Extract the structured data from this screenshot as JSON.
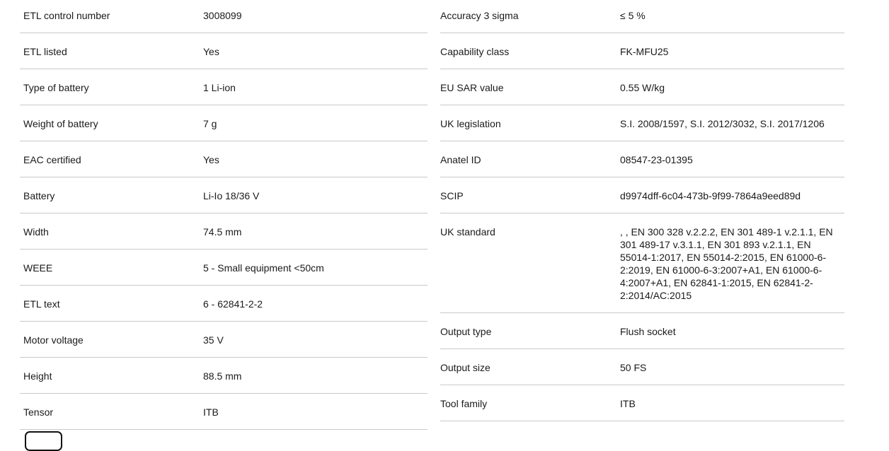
{
  "page": {
    "background_color": "#ffffff",
    "divider_color": "#c9c9c9",
    "text_color": "#1a1a1a"
  },
  "spec_table": {
    "left_column": [
      {
        "label": "ETL control number",
        "value": "3008099"
      },
      {
        "label": "ETL listed",
        "value": "Yes"
      },
      {
        "label": "Type of battery",
        "value": "1 Li-ion"
      },
      {
        "label": "Weight of battery",
        "value": "7 g"
      },
      {
        "label": "EAC certified",
        "value": "Yes"
      },
      {
        "label": "Battery",
        "value": "Li-Io 18/36 V"
      },
      {
        "label": "Width",
        "value": "74.5 mm"
      },
      {
        "label": "WEEE",
        "value": "5 - Small equipment <50cm"
      },
      {
        "label": "ETL text",
        "value": "6 - 62841-2-2"
      },
      {
        "label": "Motor voltage",
        "value": "35 V"
      },
      {
        "label": "Height",
        "value": "88.5 mm"
      },
      {
        "label": "Tensor",
        "value": "ITB"
      }
    ],
    "right_column": [
      {
        "label": "Accuracy 3 sigma",
        "value": "≤ 5 %"
      },
      {
        "label": "Capability class",
        "value": "FK-MFU25"
      },
      {
        "label": "EU SAR value",
        "value": "0.55 W/kg"
      },
      {
        "label": "UK legislation",
        "value": "S.I. 2008/1597, S.I. 2012/3032, S.I. 2017/1206"
      },
      {
        "label": "Anatel ID",
        "value": "08547-23-01395"
      },
      {
        "label": "SCIP",
        "value": "d9974dff-6c04-473b-9f99-7864a9eed89d"
      },
      {
        "label": "UK standard",
        "value": ", , EN 300 328 v.2.2.2, EN 301 489-1 v.2.1.1, EN 301 489-17 v.3.1.1, EN 301 893 v.2.1.1, EN 55014-1:2017, EN 55014-2:2015, EN 61000-6-2:2019, EN 61000-6-3:2007+A1, EN 61000-6-4:2007+A1, EN 62841-1:2015, EN 62841-2-2:2014/AC:2015"
      },
      {
        "label": "Output type",
        "value": "Flush socket"
      },
      {
        "label": "Output size",
        "value": "50 FS"
      },
      {
        "label": "Tool family",
        "value": "ITB"
      }
    ]
  },
  "partial_button": {
    "label": ""
  }
}
